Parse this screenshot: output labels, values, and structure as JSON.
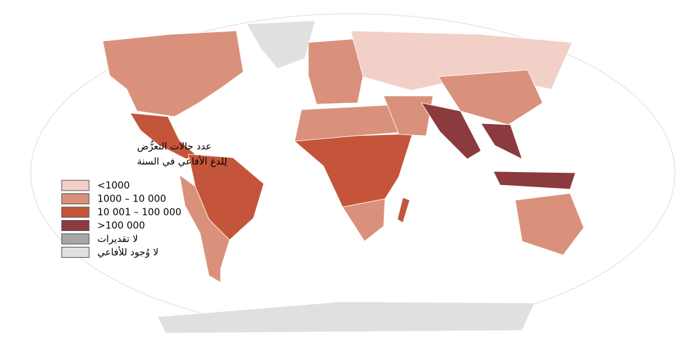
{
  "legend": {
    "title": [
      "عدد حالات التعرُّض",
      "لِلدغ الأفاعي في السنة"
    ],
    "items": [
      {
        "label": "<1000",
        "color": "#f2d0c8"
      },
      {
        "label": "1000 – 10 000",
        "color": "#d9917b"
      },
      {
        "label": "10 001 – 100 000",
        "color": "#c4553b"
      },
      {
        "label": ">100 000",
        "color": "#8b3a3e"
      },
      {
        "label": "لا تقديرات",
        "color": "#a6a6a6"
      },
      {
        "label": "لا وُجود للأفاعي",
        "color": "#e0e0e0"
      }
    ]
  }
}
